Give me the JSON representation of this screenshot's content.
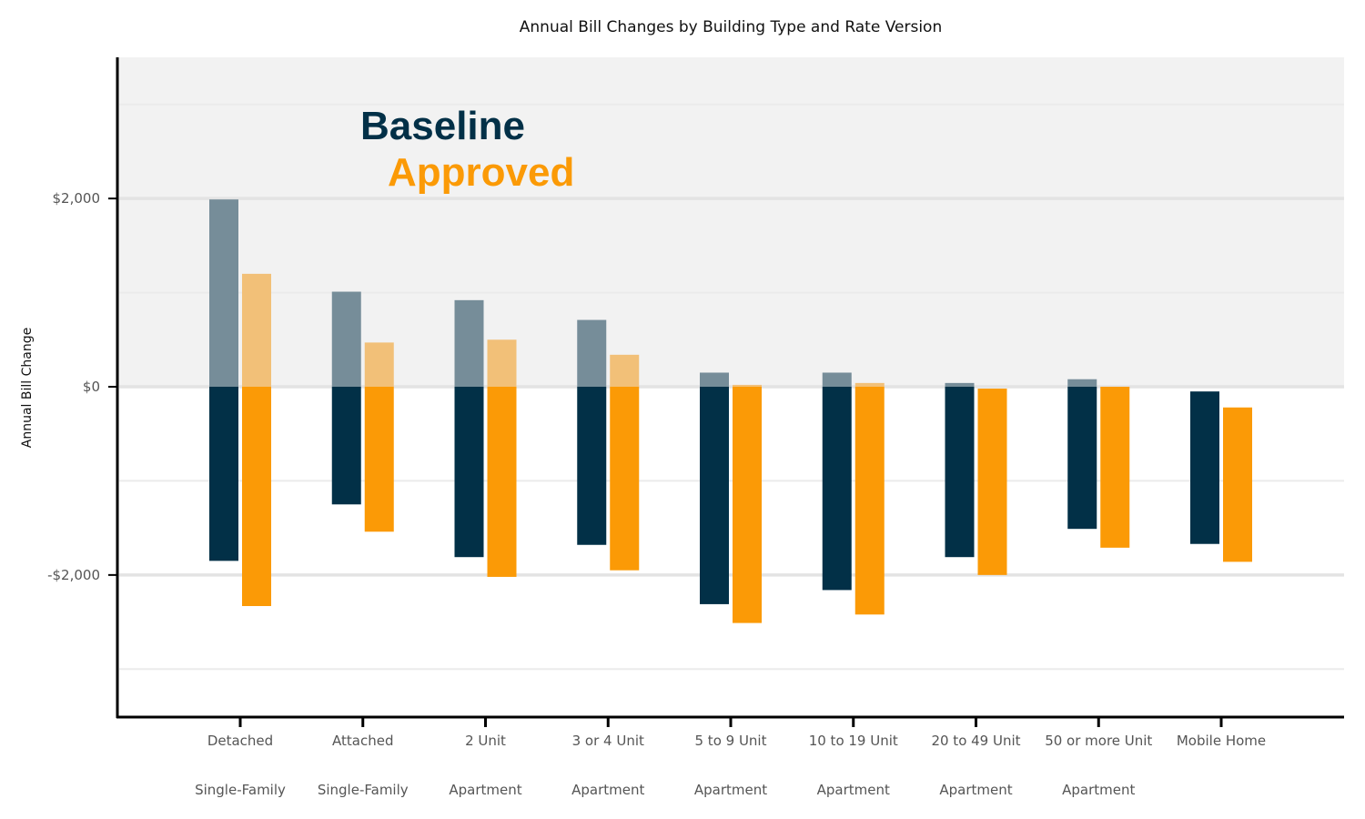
{
  "chart_data": {
    "type": "bar",
    "title": "Annual Bill Changes by Building Type and Rate Version",
    "ylabel": "Annual Bill Change",
    "xlabel": "",
    "ylim": [
      -3500,
      3500
    ],
    "yticks": [
      2000,
      0,
      -2000
    ],
    "ytick_labels": [
      "$2,000",
      "$0",
      "-$2,000"
    ],
    "grid": true,
    "categories": [
      {
        "line1": "Detached",
        "line2": "Single-Family"
      },
      {
        "line1": "Attached",
        "line2": "Single-Family"
      },
      {
        "line1": "2 Unit",
        "line2": "Apartment"
      },
      {
        "line1": "3 or 4 Unit",
        "line2": "Apartment"
      },
      {
        "line1": "5 to 9 Unit",
        "line2": "Apartment"
      },
      {
        "line1": "10 to 19 Unit",
        "line2": "Apartment"
      },
      {
        "line1": "20 to 49 Unit",
        "line2": "Apartment"
      },
      {
        "line1": "50 or more Unit",
        "line2": "Apartment"
      },
      {
        "line1": "Mobile Home",
        "line2": ""
      }
    ],
    "series": [
      {
        "name": "Baseline",
        "color": "#023047",
        "positive_color": "#768d99",
        "high": [
          1990,
          1010,
          920,
          710,
          150,
          150,
          40,
          80,
          -50
        ],
        "low": [
          -1850,
          -1250,
          -1810,
          -1680,
          -2310,
          -2160,
          -1810,
          -1510,
          -1670
        ]
      },
      {
        "name": "Approved",
        "color": "#fb9a06",
        "positive_color": "#f2c078",
        "high": [
          1200,
          470,
          500,
          340,
          20,
          40,
          -20,
          0,
          -220
        ],
        "low": [
          -2330,
          -1540,
          -2020,
          -1950,
          -2510,
          -2420,
          -2000,
          -1710,
          -1860
        ]
      }
    ]
  }
}
